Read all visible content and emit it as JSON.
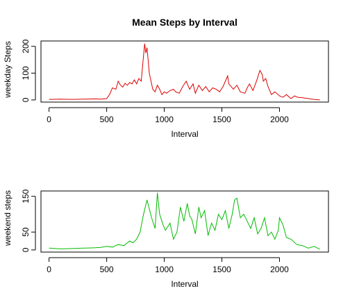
{
  "chart_data": [
    {
      "type": "line",
      "title": "Mean Steps by Interval",
      "xlabel": "Interval",
      "ylabel": "weekday Steps",
      "xlim": [
        -70,
        2425
      ],
      "ylim": [
        -8,
        220
      ],
      "xticks": [
        0,
        500,
        1000,
        1500,
        2000
      ],
      "yticks": [
        0,
        100,
        200
      ],
      "color": "#DD0000",
      "x": [
        0,
        100,
        200,
        300,
        400,
        450,
        500,
        525,
        550,
        580,
        600,
        620,
        640,
        660,
        680,
        700,
        720,
        740,
        760,
        780,
        800,
        815,
        830,
        840,
        850,
        860,
        870,
        880,
        900,
        920,
        940,
        960,
        980,
        1000,
        1020,
        1050,
        1080,
        1100,
        1130,
        1160,
        1190,
        1220,
        1250,
        1270,
        1300,
        1330,
        1360,
        1390,
        1420,
        1450,
        1480,
        1510,
        1540,
        1550,
        1560,
        1600,
        1630,
        1660,
        1700,
        1720,
        1740,
        1770,
        1800,
        1830,
        1850,
        1860,
        1880,
        1900,
        1930,
        1960,
        2000,
        2030,
        2060,
        2100,
        2130,
        2160,
        2200,
        2250,
        2300,
        2350
      ],
      "values": [
        2,
        3,
        2,
        3,
        4,
        3,
        5,
        20,
        45,
        40,
        70,
        55,
        48,
        62,
        55,
        65,
        60,
        75,
        60,
        80,
        70,
        140,
        210,
        175,
        195,
        150,
        100,
        80,
        40,
        30,
        55,
        40,
        20,
        30,
        25,
        35,
        40,
        30,
        25,
        50,
        70,
        40,
        60,
        25,
        55,
        35,
        50,
        30,
        45,
        40,
        30,
        50,
        80,
        90,
        60,
        40,
        55,
        30,
        25,
        45,
        60,
        35,
        70,
        110,
        95,
        70,
        80,
        50,
        20,
        30,
        15,
        10,
        20,
        5,
        15,
        10,
        8,
        5,
        2,
        0
      ]
    },
    {
      "type": "line",
      "title": "",
      "xlabel": "Interval",
      "ylabel": "weekend steps",
      "xlim": [
        -70,
        2425
      ],
      "ylim": [
        -6,
        165
      ],
      "xticks": [
        0,
        500,
        1000,
        1500,
        2000
      ],
      "yticks": [
        0,
        50,
        150
      ],
      "color": "#00BB00",
      "x": [
        0,
        100,
        200,
        300,
        400,
        450,
        500,
        550,
        600,
        650,
        700,
        730,
        760,
        790,
        820,
        850,
        870,
        890,
        920,
        940,
        960,
        990,
        1010,
        1050,
        1080,
        1110,
        1140,
        1170,
        1200,
        1220,
        1240,
        1270,
        1300,
        1320,
        1350,
        1380,
        1410,
        1440,
        1470,
        1500,
        1530,
        1560,
        1590,
        1610,
        1630,
        1660,
        1690,
        1720,
        1750,
        1780,
        1810,
        1840,
        1870,
        1900,
        1930,
        1960,
        1990,
        2000,
        2030,
        2060,
        2100,
        2150,
        2200,
        2250,
        2300,
        2350
      ],
      "values": [
        5,
        3,
        4,
        5,
        6,
        7,
        10,
        8,
        15,
        12,
        25,
        20,
        30,
        50,
        100,
        140,
        115,
        90,
        60,
        160,
        100,
        70,
        55,
        75,
        30,
        50,
        120,
        80,
        130,
        95,
        85,
        45,
        120,
        90,
        110,
        40,
        75,
        55,
        100,
        85,
        110,
        60,
        100,
        140,
        145,
        90,
        100,
        80,
        60,
        90,
        45,
        60,
        90,
        40,
        50,
        30,
        55,
        90,
        70,
        35,
        30,
        15,
        12,
        5,
        10,
        2
      ]
    }
  ]
}
